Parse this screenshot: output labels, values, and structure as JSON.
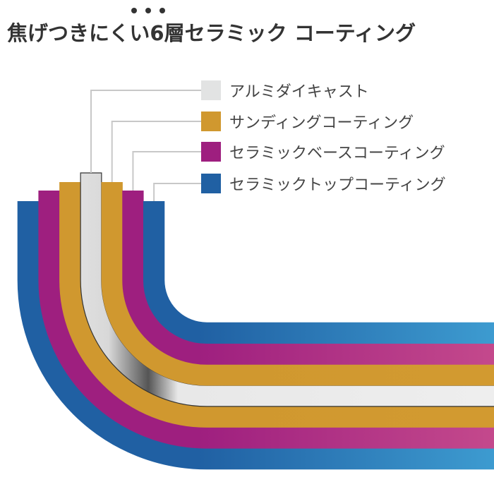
{
  "title": "焦げつきにくい6層セラミック コーティング",
  "emphasis_dots": 3,
  "legend": [
    {
      "label": "アルミダイキャスト",
      "color": "#e2e3e3"
    },
    {
      "label": "サンディングコーティング",
      "color": "#d0982f"
    },
    {
      "label": "セラミックベースコーティング",
      "color": "#9e1f7f"
    },
    {
      "label": "セラミックトップコーティング",
      "color": "#2060a3"
    }
  ],
  "layers_outer_to_inner": [
    {
      "name": "セラミックトップコーティング",
      "color": "#2060a3",
      "color_light": "#3d9bd0"
    },
    {
      "name": "セラミックベースコーティング",
      "color": "#9e1f7f",
      "color_light": "#c4498c"
    },
    {
      "name": "サンディングコーティング",
      "color": "#d0982f",
      "color_light": "#d29a30"
    },
    {
      "name": "アルミダイキャスト",
      "color": "#e8e8e8",
      "color_light": "#eeeeee"
    },
    {
      "name": "サンディングコーティング",
      "color": "#d0982f",
      "color_light": "#d29a30"
    },
    {
      "name": "セラミックベースコーティング",
      "color": "#9e1f7f",
      "color_light": "#c4498c"
    },
    {
      "name": "セラミックトップコーティング",
      "color": "#2060a3",
      "color_light": "#3d9bd0"
    }
  ]
}
